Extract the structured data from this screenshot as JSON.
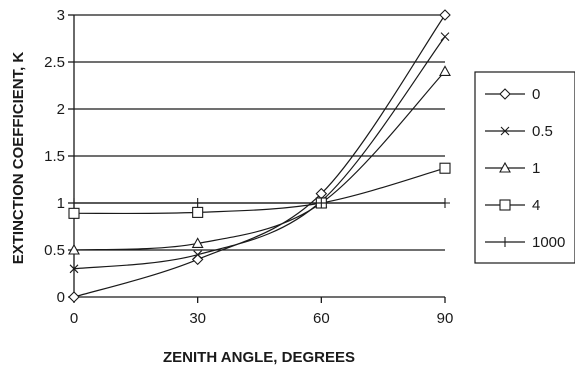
{
  "chart_data": {
    "type": "line",
    "title": "",
    "xlabel": "ZENITH ANGLE, DEGREES",
    "ylabel": "EXTINCTION COEFFICIENT, K",
    "x": [
      0,
      30,
      60,
      90
    ],
    "xlim": [
      0,
      90
    ],
    "ylim": [
      0,
      3
    ],
    "xticks": [
      "0",
      "30",
      "60",
      "90"
    ],
    "yticks": [
      "0",
      "0.5",
      "1",
      "1.5",
      "2",
      "2.5",
      "3"
    ],
    "grid": "horizontal",
    "legend_position": "right",
    "series": [
      {
        "name": "0",
        "marker": "diamond",
        "values": [
          0.0,
          0.4,
          1.1,
          3.0
        ]
      },
      {
        "name": "0.5",
        "marker": "x",
        "values": [
          0.3,
          0.45,
          1.02,
          2.77
        ]
      },
      {
        "name": "1",
        "marker": "triangle",
        "values": [
          0.5,
          0.57,
          1.0,
          2.4
        ]
      },
      {
        "name": "4",
        "marker": "square",
        "values": [
          0.89,
          0.9,
          1.0,
          1.37
        ]
      },
      {
        "name": "1000",
        "marker": "plus",
        "values": [
          1.0,
          1.0,
          1.0,
          1.0
        ]
      }
    ]
  }
}
